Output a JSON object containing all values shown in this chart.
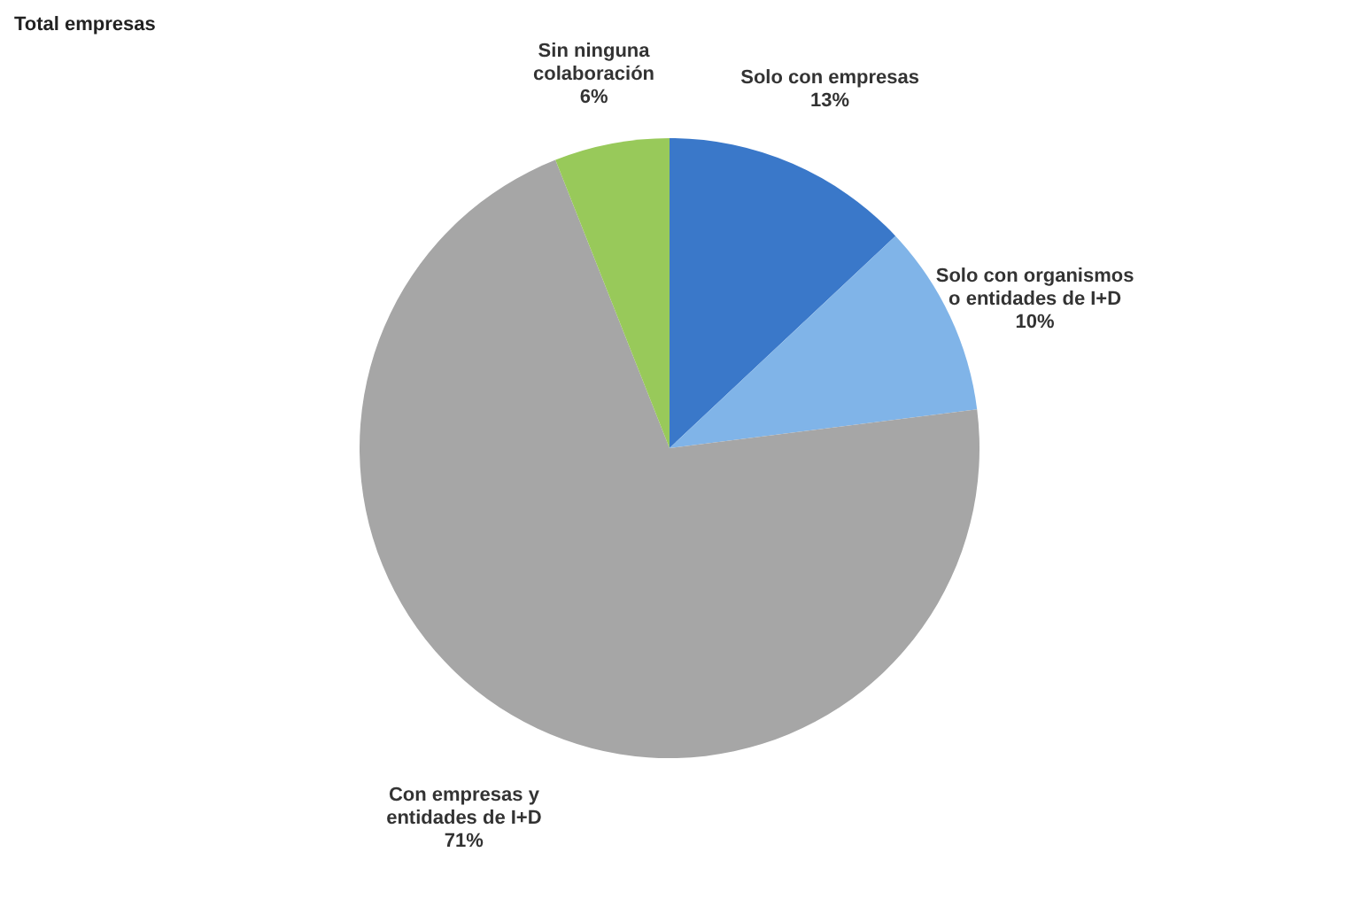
{
  "chart_data": {
    "type": "pie",
    "title": "Total empresas",
    "categories": [
      "Solo con empresas",
      "Solo con organismos o entidades de I+D",
      "Con empresas y entidades de I+D",
      "Sin ninguna colaboración"
    ],
    "values": [
      13,
      10,
      71,
      6
    ],
    "colors": [
      "#3a78c9",
      "#80b4e8",
      "#a6a6a6",
      "#98c95a"
    ],
    "value_labels": [
      "13%",
      "10%",
      "71%",
      "6%"
    ],
    "legend": false
  }
}
